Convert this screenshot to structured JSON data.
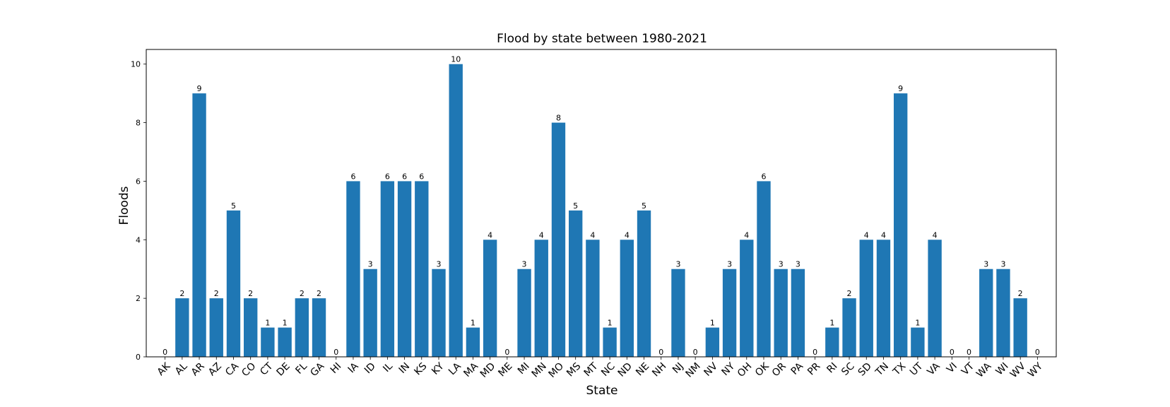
{
  "chart_data": {
    "type": "bar",
    "title": "Flood by state between 1980-2021",
    "xlabel": "State",
    "ylabel": "Floods",
    "ylim": [
      0,
      10.5
    ],
    "yticks": [
      0,
      2,
      4,
      6,
      8,
      10
    ],
    "grid": false,
    "bar_color": "#1f77b4",
    "categories": [
      "AK",
      "AL",
      "AR",
      "AZ",
      "CA",
      "CO",
      "CT",
      "DE",
      "FL",
      "GA",
      "HI",
      "IA",
      "ID",
      "IL",
      "IN",
      "KS",
      "KY",
      "LA",
      "MA",
      "MD",
      "ME",
      "MI",
      "MN",
      "MO",
      "MS",
      "MT",
      "NC",
      "ND",
      "NE",
      "NH",
      "NJ",
      "NM",
      "NV",
      "NY",
      "OH",
      "OK",
      "OR",
      "PA",
      "PR",
      "RI",
      "SC",
      "SD",
      "TN",
      "TX",
      "UT",
      "VA",
      "VI",
      "VT",
      "WA",
      "WI",
      "WV",
      "WY"
    ],
    "values": [
      0,
      2,
      9,
      2,
      5,
      2,
      1,
      1,
      2,
      2,
      0,
      6,
      3,
      6,
      6,
      6,
      3,
      10,
      1,
      4,
      0,
      3,
      4,
      8,
      5,
      4,
      1,
      4,
      5,
      0,
      3,
      0,
      1,
      3,
      4,
      6,
      3,
      3,
      0,
      1,
      2,
      4,
      4,
      9,
      1,
      4,
      0,
      0,
      3,
      3,
      2,
      0
    ]
  }
}
